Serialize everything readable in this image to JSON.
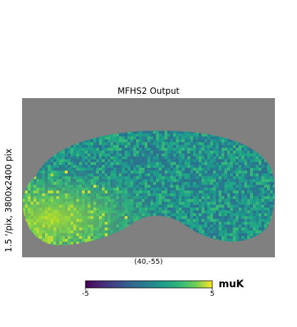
{
  "chart_data": {
    "type": "heatmap",
    "title": "MFHS2 Output",
    "ylabel": "1.5 '/pix,   3800x2400 pix",
    "xlabel": "(40,-55)",
    "colorbar": {
      "min": -5,
      "max": 5,
      "tick_labels": [
        "-5",
        "5"
      ],
      "unit": "muK",
      "colormap": "viridis"
    },
    "background_color": "#808080",
    "grid": false
  }
}
